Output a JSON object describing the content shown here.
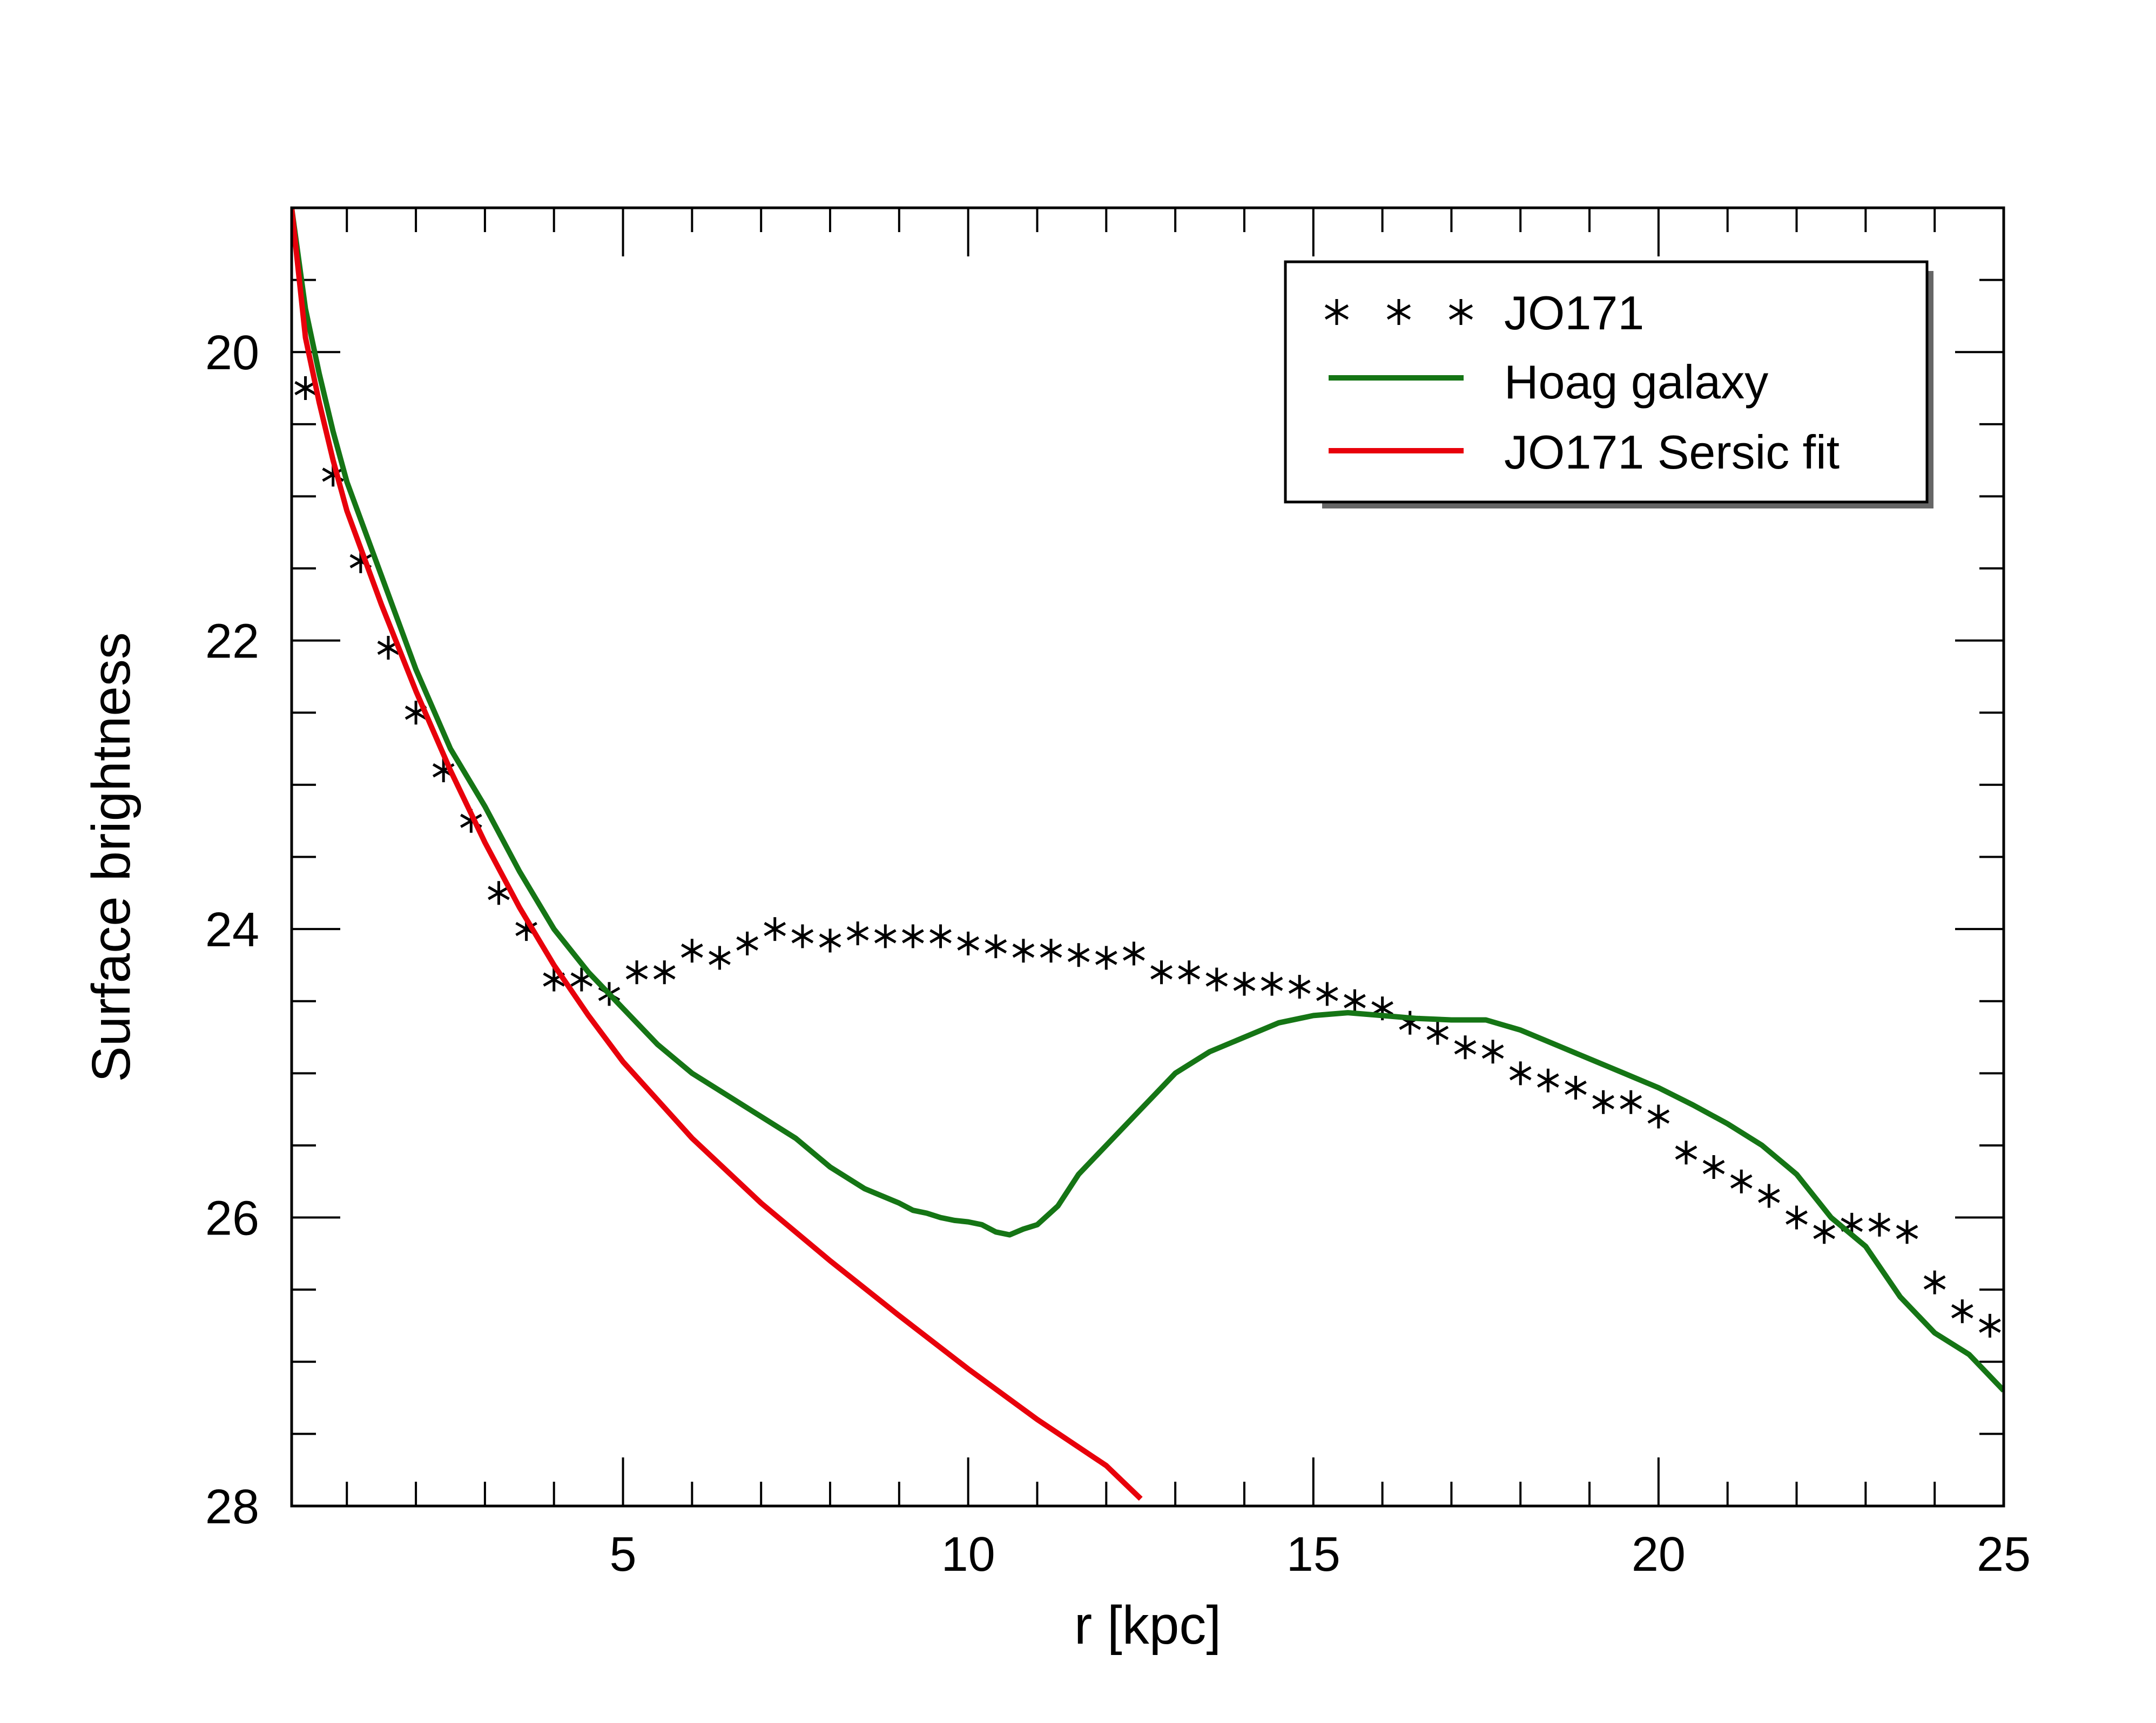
{
  "chart_data": {
    "type": "line",
    "xlabel": "r [kpc]",
    "ylabel": "Surface brightness",
    "xlim": [
      0.2,
      25
    ],
    "ylim": [
      19,
      28
    ],
    "y_inverted": true,
    "grid": false,
    "legend_position": "top-right",
    "x_ticks": [
      5,
      10,
      15,
      20,
      25
    ],
    "x_tick_labels": [
      "5",
      "10",
      "15",
      "20",
      "25"
    ],
    "y_ticks": [
      20,
      22,
      24,
      26,
      28
    ],
    "y_tick_labels": [
      "20",
      "22",
      "24",
      "26",
      "28"
    ],
    "series": [
      {
        "name": "JO171",
        "style": "markers",
        "marker": "asterisk",
        "color": "#000000",
        "x": [
          0.4,
          0.8,
          1.2,
          1.6,
          2.0,
          2.4,
          2.8,
          3.2,
          3.6,
          4.0,
          4.4,
          4.8,
          5.2,
          5.6,
          6.0,
          6.4,
          6.8,
          7.2,
          7.6,
          8.0,
          8.4,
          8.8,
          9.2,
          9.6,
          10.0,
          10.4,
          10.8,
          11.2,
          11.6,
          12.0,
          12.4,
          12.8,
          13.2,
          13.6,
          14.0,
          14.4,
          14.8,
          15.2,
          15.6,
          16.0,
          16.4,
          16.8,
          17.2,
          17.6,
          18.0,
          18.4,
          18.8,
          19.2,
          19.6,
          20.0,
          20.4,
          20.8,
          21.2,
          21.6,
          22.0,
          22.4,
          22.8,
          23.2,
          23.6,
          24.0,
          24.4,
          24.8
        ],
        "y": [
          20.25,
          20.85,
          21.45,
          22.05,
          22.5,
          22.9,
          23.25,
          23.75,
          24.0,
          24.35,
          24.35,
          24.45,
          24.3,
          24.3,
          24.15,
          24.2,
          24.1,
          24.0,
          24.05,
          24.08,
          24.03,
          24.05,
          24.05,
          24.05,
          24.1,
          24.12,
          24.15,
          24.15,
          24.18,
          24.2,
          24.17,
          24.3,
          24.3,
          24.35,
          24.38,
          24.38,
          24.4,
          24.45,
          24.5,
          24.55,
          24.65,
          24.72,
          24.82,
          24.85,
          25.0,
          25.05,
          25.1,
          25.2,
          25.2,
          25.3,
          25.55,
          25.65,
          25.75,
          25.85,
          26.0,
          26.1,
          26.05,
          26.05,
          26.1,
          26.45,
          26.65,
          26.75
        ]
      },
      {
        "name": "Hoag galaxy",
        "style": "line",
        "color": "#157515",
        "x": [
          0.2,
          0.4,
          0.6,
          0.8,
          1.0,
          1.5,
          2.0,
          2.5,
          3.0,
          3.5,
          4.0,
          4.5,
          5.0,
          5.5,
          6.0,
          6.5,
          7.0,
          7.5,
          8.0,
          8.5,
          9.0,
          9.2,
          9.4,
          9.6,
          9.8,
          10.0,
          10.2,
          10.4,
          10.6,
          10.8,
          11.0,
          11.3,
          11.6,
          12.0,
          12.5,
          13.0,
          13.5,
          14.0,
          14.5,
          15.0,
          15.5,
          16.0,
          16.5,
          17.0,
          17.5,
          18.0,
          18.5,
          19.0,
          19.5,
          20.0,
          20.5,
          21.0,
          21.5,
          22.0,
          22.5,
          23.0,
          23.5,
          24.0,
          24.5,
          25.0
        ],
        "y": [
          19.0,
          19.7,
          20.15,
          20.55,
          20.9,
          21.55,
          22.2,
          22.75,
          23.15,
          23.6,
          24.0,
          24.3,
          24.55,
          24.8,
          25.0,
          25.15,
          25.3,
          25.45,
          25.65,
          25.8,
          25.9,
          25.95,
          25.97,
          26.0,
          26.02,
          26.03,
          26.05,
          26.1,
          26.12,
          26.08,
          26.05,
          25.92,
          25.7,
          25.5,
          25.25,
          25.0,
          24.85,
          24.75,
          24.65,
          24.6,
          24.58,
          24.6,
          24.62,
          24.63,
          24.63,
          24.7,
          24.8,
          24.9,
          25.0,
          25.1,
          25.22,
          25.35,
          25.5,
          25.7,
          26.0,
          26.2,
          26.55,
          26.8,
          26.95,
          27.2
        ]
      },
      {
        "name": "JO171 Sersic fit",
        "style": "line",
        "color": "#e8000b",
        "x": [
          0.2,
          0.4,
          0.6,
          0.8,
          1.0,
          1.5,
          2.0,
          2.5,
          3.0,
          3.5,
          4.0,
          4.5,
          5.0,
          6.0,
          7.0,
          8.0,
          9.0,
          10.0,
          11.0,
          12.0,
          12.5
        ],
        "y": [
          19.0,
          19.9,
          20.35,
          20.75,
          21.1,
          21.75,
          22.35,
          22.9,
          23.4,
          23.85,
          24.25,
          24.6,
          24.92,
          25.45,
          25.9,
          26.3,
          26.68,
          27.05,
          27.4,
          27.72,
          27.95
        ]
      }
    ]
  }
}
